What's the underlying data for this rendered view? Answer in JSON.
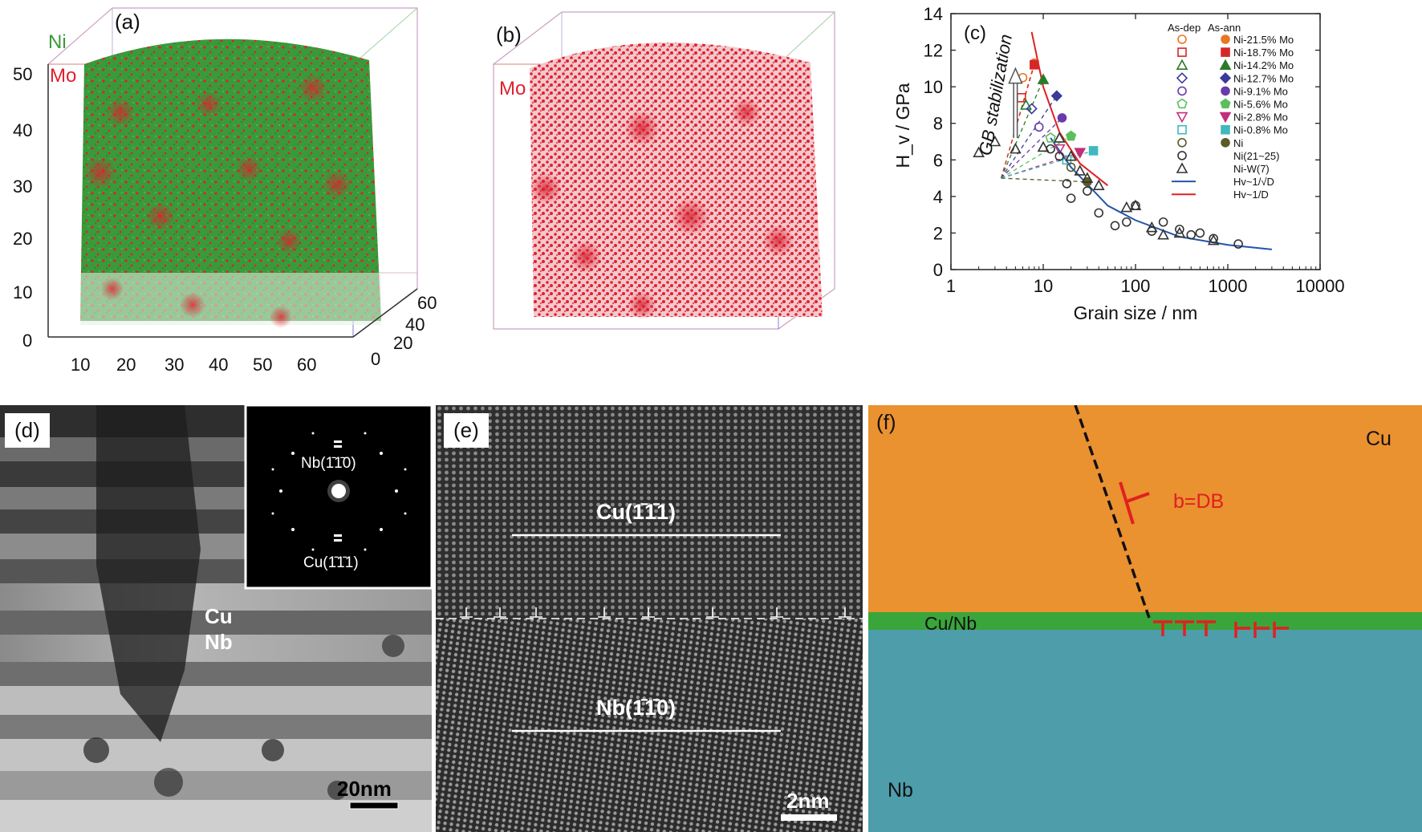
{
  "panel_a": {
    "label": "(a)",
    "legend": [
      "Ni",
      "Mo"
    ],
    "z_ticks": [
      "0",
      "10",
      "20",
      "30",
      "40",
      "50"
    ],
    "x_ticks": [
      "10",
      "20",
      "30",
      "40",
      "50",
      "60"
    ],
    "y_ticks": [
      "0",
      "20",
      "40",
      "60"
    ],
    "colors": {
      "ni": "#3a9a3a",
      "mo": "#e0202e"
    }
  },
  "panel_b": {
    "label": "(b)",
    "legend": "Mo",
    "colors": {
      "mo": "#e0202e"
    }
  },
  "panel_c": {
    "label": "(c)",
    "annotation": "GB stabilization",
    "legend_headers": [
      "As-dep",
      "As-ann"
    ],
    "chart_data": {
      "type": "scatter",
      "xlabel": "Grain size / nm",
      "ylabel": "H_v / GPa",
      "xscale": "log",
      "xlim": [
        1,
        10000
      ],
      "ylim": [
        0,
        14
      ],
      "x_ticks": [
        "1",
        "10",
        "100",
        "1000",
        "10000"
      ],
      "y_ticks": [
        "0",
        "2",
        "4",
        "6",
        "8",
        "10",
        "12",
        "14"
      ],
      "legend": [
        "Ni-21.5% Mo",
        "Ni-18.7% Mo",
        "Ni-14.2% Mo",
        "Ni-12.7% Mo",
        "Ni-9.1% Mo",
        "Ni-5.6% Mo",
        "Ni-2.8% Mo",
        "Ni-0.8% Mo",
        "Ni",
        "Ni(21~25)",
        "Ni-W(7)",
        "Hv~1/√D",
        "Hv~1/D"
      ],
      "series": [
        {
          "name": "Ni-21.5% Mo",
          "color": "#e87722",
          "marker": "circle",
          "as_dep": [
            [
              6,
              10.5
            ]
          ],
          "as_ann": [
            [
              8,
              11.3
            ]
          ]
        },
        {
          "name": "Ni-18.7% Mo",
          "color": "#d62728",
          "marker": "square",
          "as_dep": [
            [
              5.8,
              9.4
            ]
          ],
          "as_ann": [
            [
              8,
              11.2
            ]
          ]
        },
        {
          "name": "Ni-14.2% Mo",
          "color": "#2a7a2a",
          "marker": "triangle",
          "as_dep": [
            [
              6.5,
              9.0
            ]
          ],
          "as_ann": [
            [
              10,
              10.4
            ]
          ]
        },
        {
          "name": "Ni-12.7% Mo",
          "color": "#3a3a9a",
          "marker": "diamond",
          "as_dep": [
            [
              7.5,
              8.8
            ]
          ],
          "as_ann": [
            [
              14,
              9.5
            ]
          ]
        },
        {
          "name": "Ni-9.1% Mo",
          "color": "#6a3aaa",
          "marker": "circle",
          "as_dep": [
            [
              9,
              7.8
            ]
          ],
          "as_ann": [
            [
              16,
              8.3
            ]
          ]
        },
        {
          "name": "Ni-5.6% Mo",
          "color": "#5cbf5c",
          "marker": "pentagon",
          "as_dep": [
            [
              12,
              7.2
            ]
          ],
          "as_ann": [
            [
              20,
              7.3
            ]
          ]
        },
        {
          "name": "Ni-2.8% Mo",
          "color": "#c0307a",
          "marker": "triangle-down",
          "as_dep": [
            [
              15,
              6.6
            ]
          ],
          "as_ann": [
            [
              25,
              6.4
            ]
          ]
        },
        {
          "name": "Ni-0.8% Mo",
          "color": "#40b8c0",
          "marker": "square",
          "as_dep": [
            [
              18,
              6.0
            ]
          ],
          "as_ann": [
            [
              35,
              6.5
            ]
          ]
        },
        {
          "name": "Ni",
          "color": "#5a5a2a",
          "marker": "circle",
          "as_dep": [
            [
              20,
              5.6
            ]
          ],
          "as_ann": [
            [
              30,
              4.8
            ]
          ]
        },
        {
          "name": "Ni(21~25)",
          "color": "#333333",
          "marker": "circle-open",
          "values": [
            [
              12,
              6.6
            ],
            [
              15,
              6.2
            ],
            [
              18,
              4.7
            ],
            [
              20,
              3.9
            ],
            [
              30,
              4.3
            ],
            [
              40,
              3.1
            ],
            [
              60,
              2.4
            ],
            [
              80,
              2.6
            ],
            [
              100,
              3.5
            ],
            [
              150,
              2.1
            ],
            [
              200,
              2.6
            ],
            [
              300,
              2.2
            ],
            [
              400,
              1.9
            ],
            [
              500,
              2.0
            ],
            [
              700,
              1.7
            ],
            [
              1300,
              1.4
            ]
          ]
        },
        {
          "name": "Ni-W(7)",
          "color": "#333333",
          "marker": "triangle-open",
          "values": [
            [
              2,
              6.4
            ],
            [
              3,
              7.0
            ],
            [
              5,
              6.6
            ],
            [
              10,
              6.7
            ],
            [
              15,
              7.2
            ],
            [
              20,
              6.2
            ],
            [
              25,
              5.4
            ],
            [
              30,
              5.0
            ],
            [
              40,
              4.6
            ],
            [
              80,
              3.4
            ],
            [
              100,
              3.5
            ],
            [
              150,
              2.3
            ],
            [
              200,
              1.9
            ],
            [
              300,
              2.0
            ],
            [
              700,
              1.6
            ]
          ]
        },
        {
          "name": "Hv~1/√D",
          "color": "#2255aa",
          "line": [
            [
              12,
              7.2
            ],
            [
              20,
              5.6
            ],
            [
              50,
              3.5
            ],
            [
              100,
              2.7
            ],
            [
              300,
              1.8
            ],
            [
              1000,
              1.35
            ],
            [
              3000,
              1.1
            ]
          ]
        },
        {
          "name": "Hv~1/D",
          "color": "#e02020",
          "line": [
            [
              7.5,
              13.0
            ],
            [
              10,
              10.0
            ],
            [
              15,
              7.5
            ],
            [
              25,
              5.8
            ],
            [
              50,
              4.6
            ]
          ]
        }
      ]
    }
  },
  "panel_d": {
    "label": "(d)",
    "inset_labels": [
      "Nb(1̄1̄0)",
      "Cu(1̄1̄1)"
    ],
    "phase_labels": [
      "Cu",
      "Nb"
    ],
    "scale_bar": "20nm"
  },
  "panel_e": {
    "label": "(e)",
    "top_label": "Cu(1̄1̄1)",
    "bottom_label": "Nb(1̄1̄0)",
    "scale_bar": "2nm"
  },
  "panel_f": {
    "label": "(f)",
    "cu_label": "Cu",
    "nb_label": "Nb",
    "interface_label": "Cu/Nb",
    "burgers_label": "b=DB",
    "colors": {
      "cu": "#ea9130",
      "interface": "#3aa53a",
      "nb": "#4e9dab",
      "dislocation": "#e02020"
    }
  }
}
